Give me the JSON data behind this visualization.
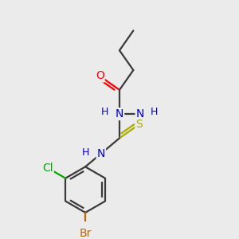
{
  "background_color": "#ebebeb",
  "bond_color": "#3a3a3a",
  "atom_colors": {
    "O": "#ff0000",
    "N": "#0000cc",
    "S": "#aaaa00",
    "Cl": "#00aa00",
    "Br": "#bb6600",
    "C": "#3a3a3a",
    "H": "#3a3a3a"
  },
  "figsize": [
    3.0,
    3.0
  ],
  "dpi": 100
}
